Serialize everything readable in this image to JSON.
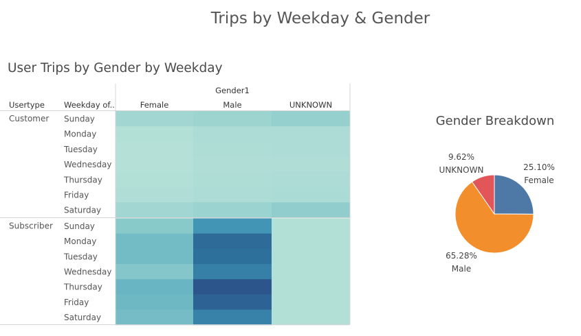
{
  "dashboard_title": "Trips by Weekday & Gender",
  "chart_data": [
    {
      "type": "heatmap",
      "title": "User Trips by Gender by Weekday",
      "column_group_label": "Gender1",
      "row_header_labels": [
        "Usertype",
        "Weekday of.."
      ],
      "columns": [
        "Female",
        "Male",
        "UNKNOWN"
      ],
      "groups": [
        {
          "usertype": "Customer",
          "weekdays": [
            "Sunday",
            "Monday",
            "Tuesday",
            "Wednesday",
            "Thursday",
            "Friday",
            "Saturday"
          ],
          "values": [
            [
              0.14,
              0.16,
              0.2
            ],
            [
              0.06,
              0.09,
              0.09
            ],
            [
              0.05,
              0.08,
              0.09
            ],
            [
              0.05,
              0.07,
              0.07
            ],
            [
              0.06,
              0.08,
              0.09
            ],
            [
              0.07,
              0.09,
              0.1
            ],
            [
              0.14,
              0.17,
              0.22
            ]
          ]
        },
        {
          "usertype": "Subscriber",
          "weekdays": [
            "Sunday",
            "Monday",
            "Tuesday",
            "Wednesday",
            "Thursday",
            "Friday",
            "Saturday"
          ],
          "values": [
            [
              0.26,
              0.6,
              0.06
            ],
            [
              0.36,
              0.83,
              0.06
            ],
            [
              0.36,
              0.8,
              0.06
            ],
            [
              0.28,
              0.72,
              0.06
            ],
            [
              0.4,
              0.96,
              0.06
            ],
            [
              0.38,
              0.88,
              0.06
            ],
            [
              0.35,
              0.7,
              0.06
            ]
          ]
        }
      ],
      "color_scale": {
        "low": "#bfe6da",
        "high": "#2b4f87"
      }
    },
    {
      "type": "pie",
      "title": "Gender Breakdown",
      "slices": [
        {
          "label": "Female",
          "value": 25.1,
          "display": "25.10%",
          "color": "#4e79a7"
        },
        {
          "label": "Male",
          "value": 65.28,
          "display": "65.28%",
          "color": "#f28e2b"
        },
        {
          "label": "UNKNOWN",
          "value": 9.62,
          "display": "9.62%",
          "color": "#e15759"
        }
      ]
    }
  ]
}
